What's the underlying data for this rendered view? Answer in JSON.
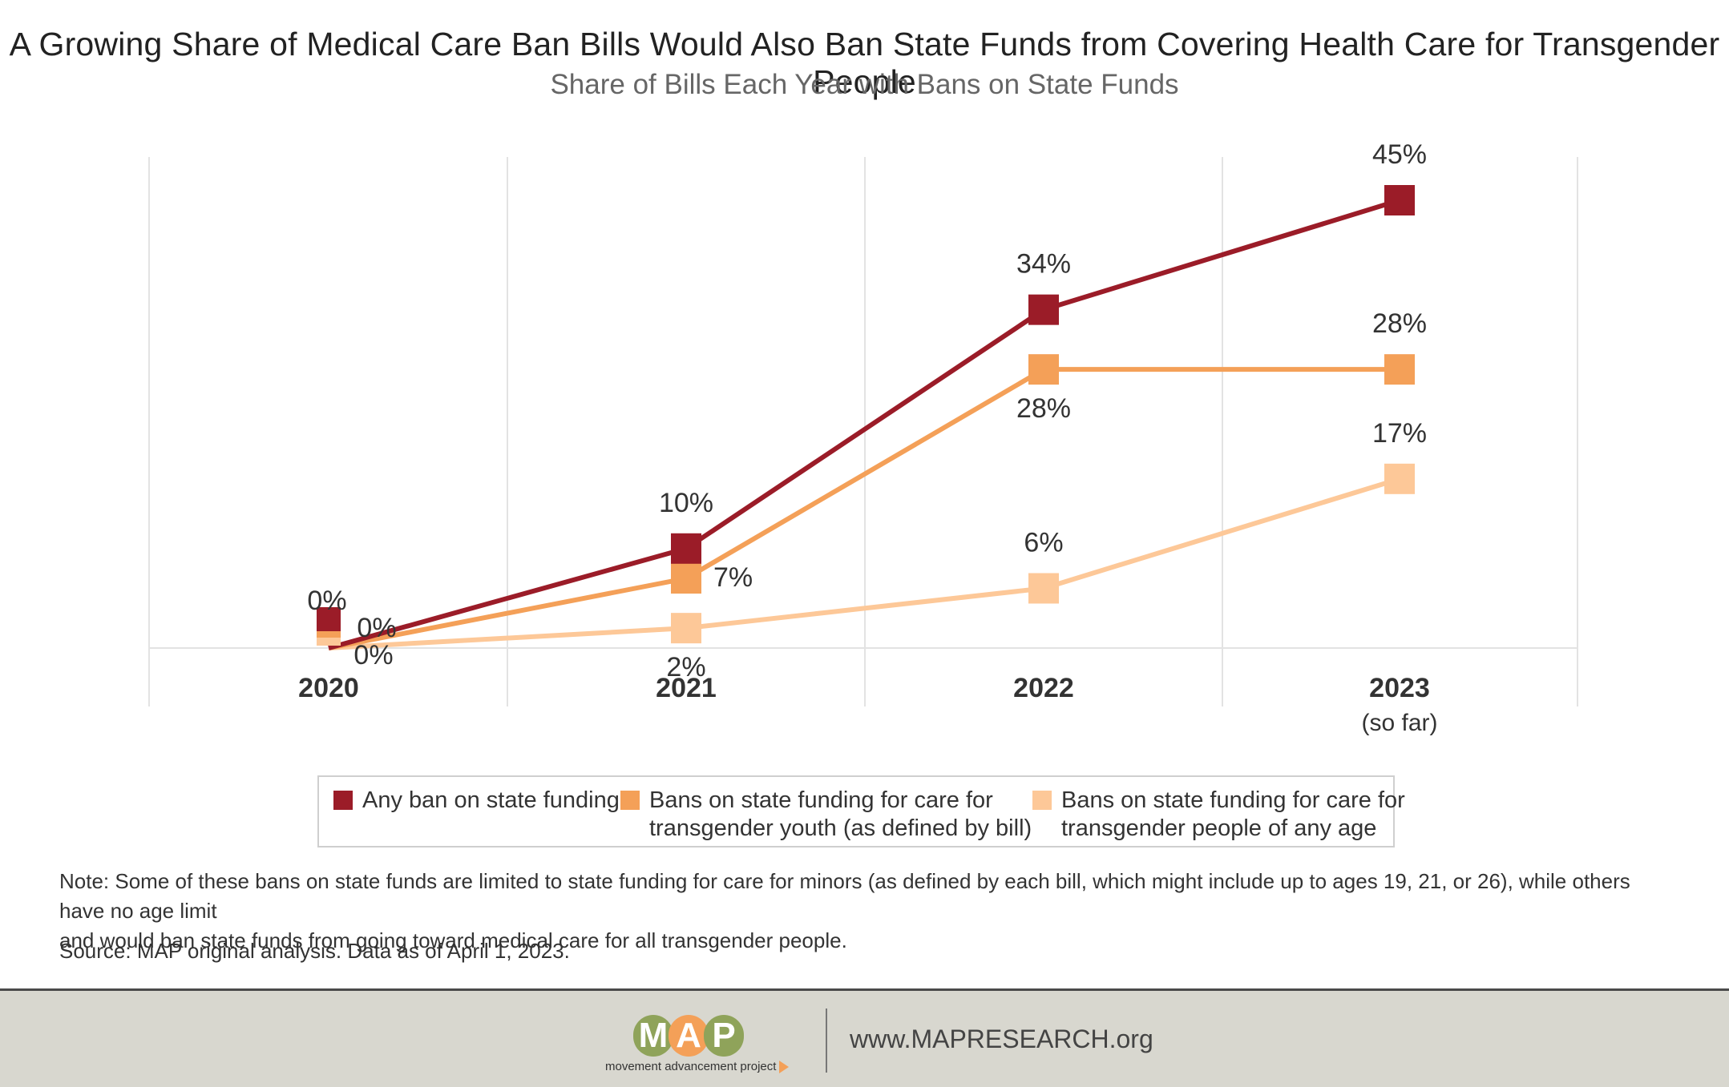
{
  "header": {
    "title": "A Growing Share of Medical Care Ban Bills Would Also Ban State Funds from Covering Health Care for Transgender People",
    "subtitle": "Share of Bills Each Year with Bans on State Funds"
  },
  "chart_data": {
    "type": "line",
    "categories": [
      "2020",
      "2021",
      "2022",
      "2023"
    ],
    "category_sublabels": [
      "",
      "",
      "",
      "(so far)"
    ],
    "ylim": [
      0,
      50
    ],
    "grid": "vertical",
    "legend_position": "bottom",
    "series": [
      {
        "name": "Any ban on state funding",
        "color": "#9b1c28",
        "values": [
          0,
          10,
          34,
          45
        ],
        "labels": [
          "0%",
          "10%",
          "34%",
          "45%"
        ]
      },
      {
        "name": "Bans on state funding for care for transgender youth (as defined by bill)",
        "color": "#f4a058",
        "values": [
          0,
          7,
          28,
          28
        ],
        "labels": [
          "0%",
          "7%",
          "28%",
          "28%"
        ]
      },
      {
        "name": "Bans on state funding for care for transgender people of any age",
        "color": "#fdc898",
        "values": [
          0,
          2,
          6,
          17
        ],
        "labels": [
          "0%",
          "2%",
          "6%",
          "17%"
        ]
      }
    ]
  },
  "legend": {
    "items": [
      {
        "line1": "Any ban on state funding",
        "line2": ""
      },
      {
        "line1": "Bans on state funding for care for",
        "line2": "transgender youth (as defined by bill)"
      },
      {
        "line1": "Bans on state funding for care for",
        "line2": "transgender people of any age"
      }
    ]
  },
  "footnotes": {
    "note_line1": "Note: Some of these bans on state funds are limited to state funding for care for minors (as defined by each bill, which might include up to ages 19, 21, or 26), while others have no age limit",
    "note_line2": "and would ban state funds from going toward medical care for all transgender people.",
    "source": "Source: MAP original analysis. Data as of April 1, 2023."
  },
  "footer": {
    "logo_letters": [
      "M",
      "A",
      "P"
    ],
    "logo_letter_colors": [
      "#8fa35a",
      "#f4a058",
      "#8fa35a"
    ],
    "logo_tagline": "movement advancement project",
    "url": "www.MAPRESEARCH.org"
  }
}
